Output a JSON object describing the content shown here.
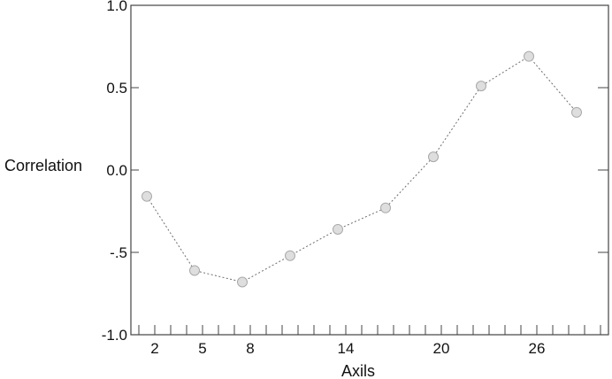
{
  "chart_data": {
    "type": "line",
    "title": "",
    "xlabel": "Axils",
    "ylabel": "Correlation",
    "xlim": [
      0.5,
      30.5
    ],
    "ylim": [
      -1.0,
      1.0
    ],
    "x_ticks": [
      2,
      5,
      8,
      14,
      20,
      26
    ],
    "x_tick_labels": [
      "2",
      "5",
      "8",
      "14",
      "20",
      "26"
    ],
    "y_ticks": [
      1.0,
      0.5,
      0.0,
      -0.5,
      -1.0
    ],
    "y_tick_labels": [
      "1.0",
      "0.5",
      "0.0",
      "-.5",
      "-1.0"
    ],
    "grid": false,
    "series": [
      {
        "x": [
          1.5,
          4.5,
          7.5,
          10.5,
          13.5,
          16.5,
          19.5,
          22.5,
          25.5,
          28.5
        ],
        "y": [
          -0.16,
          -0.61,
          -0.68,
          -0.52,
          -0.36,
          -0.23,
          0.08,
          0.51,
          0.69,
          0.35
        ]
      }
    ],
    "colors": {
      "marker_fill": "#dedede",
      "marker_stroke": "#a9a9a9",
      "line": "#6e6e6e",
      "axis": "#444444"
    }
  }
}
